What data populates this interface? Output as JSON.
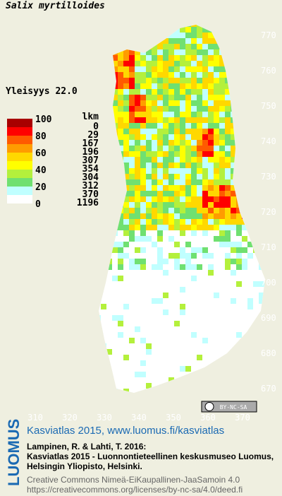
{
  "title": "Salix myrtilloides",
  "frequency": "Yleisyys  22.0",
  "legend": {
    "header": "lkm",
    "levels": [
      100,
      80,
      60,
      40,
      20,
      0
    ],
    "counts": [
      0,
      29,
      167,
      196,
      307,
      354,
      304,
      312,
      370,
      1196
    ],
    "colors": [
      "#a80000",
      "#ff0000",
      "#ff5a00",
      "#ff9c00",
      "#ffd800",
      "#ffff00",
      "#b4f03c",
      "#70e070",
      "#c0ffff",
      "#ffffff"
    ]
  },
  "map": {
    "yticks": [
      770,
      760,
      750,
      740,
      730,
      720,
      710,
      700,
      690,
      680,
      670
    ],
    "xticks": [
      310,
      320,
      330,
      340,
      350,
      360,
      370
    ],
    "badge": "BY-NC-SA"
  },
  "footer": {
    "brand": "LUOMUS",
    "headline": "Kasviatlas 2015, www.luomus.fi/kasviatlas",
    "citation": [
      "Lampinen, R. & Lahti, T. 2016:",
      "Kasviatlas 2015 - Luonnontieteellinen keskusmuseo Luomus,",
      "Helsingin Yliopisto, Helsinki."
    ],
    "license": [
      "Creative Commons Nimeä-EiKaupallinen-JaaSamoin 4.0",
      "https://creativecommons.org/licenses/by-nc-sa/4.0/deed.fi"
    ]
  }
}
